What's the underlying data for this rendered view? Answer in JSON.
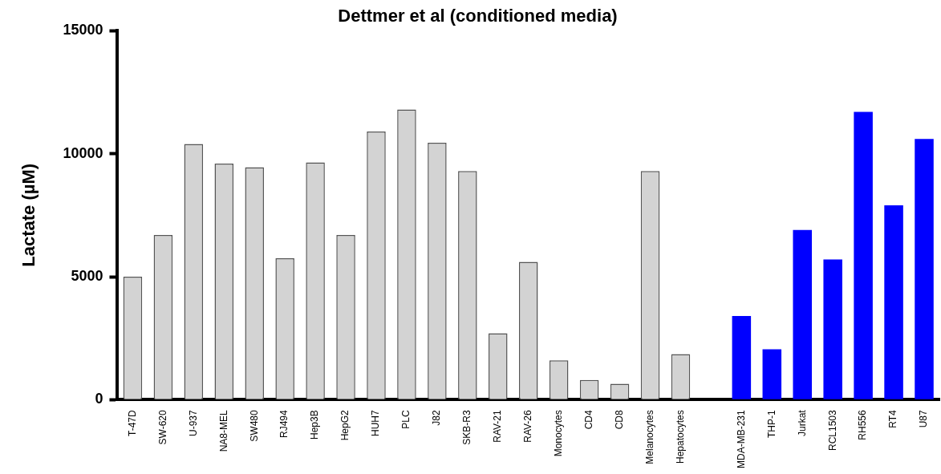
{
  "chart_data": {
    "type": "bar",
    "title": "Dettmer et al (conditioned media)",
    "ylabel": "Lactate (µM)",
    "categories": [
      "T-47D",
      "SW-620",
      "U-937",
      "NA8-MEL",
      "SW480",
      "RJ494",
      "Hep3B",
      "HepG2",
      "HUH7",
      "PLC",
      "J82",
      "SKB-R3",
      "RAV-21",
      "RAV-26",
      "Monocytes",
      "CD4",
      "CD8",
      "Melanocytes",
      "Hepatocytes",
      null,
      "MDA-MB-231",
      "THP-1",
      "Jurkat",
      "RCL1503",
      "RH556",
      "RT4",
      "U87"
    ],
    "values": [
      5000,
      6700,
      10400,
      9600,
      9450,
      5750,
      9650,
      6700,
      10900,
      11800,
      10450,
      9300,
      2700,
      5600,
      1600,
      800,
      650,
      9300,
      1850,
      null,
      3400,
      2050,
      6900,
      5700,
      11700,
      7900,
      10600
    ],
    "colors": [
      "#d3d3d3",
      "#d3d3d3",
      "#d3d3d3",
      "#d3d3d3",
      "#d3d3d3",
      "#d3d3d3",
      "#d3d3d3",
      "#d3d3d3",
      "#d3d3d3",
      "#d3d3d3",
      "#d3d3d3",
      "#d3d3d3",
      "#d3d3d3",
      "#d3d3d3",
      "#d3d3d3",
      "#d3d3d3",
      "#d3d3d3",
      "#d3d3d3",
      "#d3d3d3",
      "#d3d3d3",
      "#0000ff",
      "#0000ff",
      "#0000ff",
      "#0000ff",
      "#0000ff",
      "#0000ff",
      "#0000ff"
    ],
    "ylim": [
      0,
      15000
    ],
    "yticks": [
      0,
      5000,
      10000,
      15000
    ],
    "grid": false,
    "legend": false
  }
}
